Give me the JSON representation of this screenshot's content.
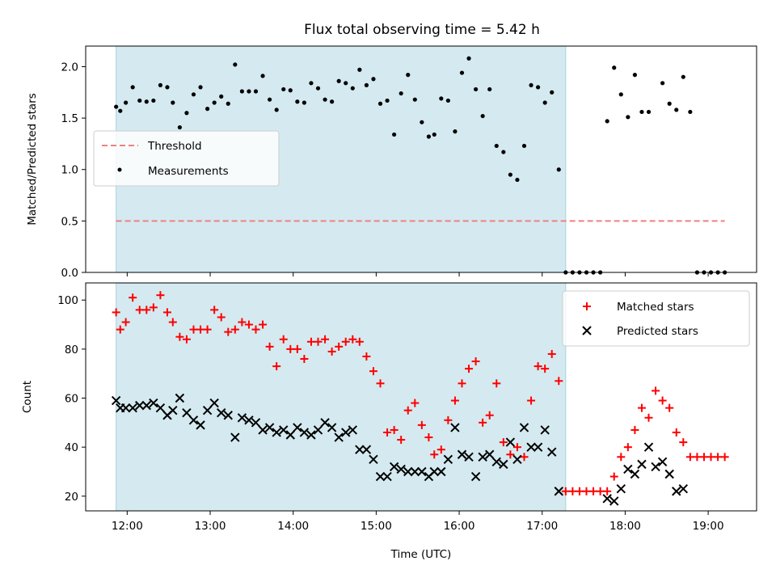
{
  "chart_data": [
    {
      "type": "scatter",
      "title": "Flux total observing time = 5.42 h",
      "ylabel": "Matched/Predicted stars",
      "xlabel": "",
      "xlim": [
        "11:30",
        "19:35"
      ],
      "ylim": [
        0,
        2.2
      ],
      "yticks": [
        "0.0",
        "0.5",
        "1.0",
        "1.5",
        "2.0"
      ],
      "highlight_span": {
        "start": "11:52",
        "end": "17:17",
        "color": "#d4eaf0"
      },
      "legend": {
        "position": "center-left",
        "entries": [
          "Threshold",
          "Measurements"
        ]
      },
      "threshold": {
        "name": "Threshold",
        "value": 0.5,
        "x_start": "11:52",
        "x_end": "19:12",
        "color": "#f08080"
      },
      "series": [
        {
          "name": "Measurements",
          "color": "#000000",
          "points": [
            [
              "11:52",
              1.61
            ],
            [
              "11:55",
              1.57
            ],
            [
              "11:59",
              1.65
            ],
            [
              "12:04",
              1.8
            ],
            [
              "12:09",
              1.67
            ],
            [
              "12:14",
              1.66
            ],
            [
              "12:19",
              1.67
            ],
            [
              "12:24",
              1.82
            ],
            [
              "12:29",
              1.8
            ],
            [
              "12:33",
              1.65
            ],
            [
              "12:38",
              1.41
            ],
            [
              "12:43",
              1.55
            ],
            [
              "12:48",
              1.73
            ],
            [
              "12:53",
              1.8
            ],
            [
              "12:58",
              1.59
            ],
            [
              "13:03",
              1.65
            ],
            [
              "13:08",
              1.71
            ],
            [
              "13:13",
              1.64
            ],
            [
              "13:18",
              2.02
            ],
            [
              "13:23",
              1.76
            ],
            [
              "13:28",
              1.76
            ],
            [
              "13:33",
              1.76
            ],
            [
              "13:38",
              1.91
            ],
            [
              "13:43",
              1.68
            ],
            [
              "13:48",
              1.58
            ],
            [
              "13:53",
              1.78
            ],
            [
              "13:58",
              1.77
            ],
            [
              "14:03",
              1.66
            ],
            [
              "14:08",
              1.65
            ],
            [
              "14:13",
              1.84
            ],
            [
              "14:18",
              1.79
            ],
            [
              "14:23",
              1.68
            ],
            [
              "14:28",
              1.66
            ],
            [
              "14:33",
              1.86
            ],
            [
              "14:38",
              1.84
            ],
            [
              "14:43",
              1.79
            ],
            [
              "14:48",
              1.97
            ],
            [
              "14:53",
              1.82
            ],
            [
              "14:58",
              1.88
            ],
            [
              "15:03",
              1.64
            ],
            [
              "15:08",
              1.67
            ],
            [
              "15:13",
              1.34
            ],
            [
              "15:18",
              1.74
            ],
            [
              "15:23",
              1.92
            ],
            [
              "15:28",
              1.68
            ],
            [
              "15:33",
              1.46
            ],
            [
              "15:38",
              1.32
            ],
            [
              "15:42",
              1.34
            ],
            [
              "15:47",
              1.69
            ],
            [
              "15:52",
              1.67
            ],
            [
              "15:57",
              1.37
            ],
            [
              "16:02",
              1.94
            ],
            [
              "16:07",
              2.08
            ],
            [
              "16:12",
              1.78
            ],
            [
              "16:17",
              1.52
            ],
            [
              "16:22",
              1.78
            ],
            [
              "16:27",
              1.23
            ],
            [
              "16:32",
              1.17
            ],
            [
              "16:37",
              0.95
            ],
            [
              "16:42",
              0.9
            ],
            [
              "16:47",
              1.23
            ],
            [
              "16:52",
              1.82
            ],
            [
              "16:57",
              1.8
            ],
            [
              "17:02",
              1.65
            ],
            [
              "17:07",
              1.75
            ],
            [
              "17:12",
              1.0
            ],
            [
              "17:17",
              0.0
            ],
            [
              "17:22",
              0.0
            ],
            [
              "17:27",
              0.0
            ],
            [
              "17:32",
              0.0
            ],
            [
              "17:37",
              0.0
            ],
            [
              "17:42",
              0.0
            ],
            [
              "17:47",
              1.47
            ],
            [
              "17:52",
              1.99
            ],
            [
              "17:57",
              1.73
            ],
            [
              "18:02",
              1.51
            ],
            [
              "18:07",
              1.92
            ],
            [
              "18:12",
              1.56
            ],
            [
              "18:17",
              1.56
            ],
            [
              "18:27",
              1.84
            ],
            [
              "18:32",
              1.64
            ],
            [
              "18:37",
              1.58
            ],
            [
              "18:42",
              1.9
            ],
            [
              "18:47",
              1.56
            ],
            [
              "18:52",
              0.0
            ],
            [
              "18:57",
              0.0
            ],
            [
              "19:02",
              0.0
            ],
            [
              "19:07",
              0.0
            ],
            [
              "19:12",
              0.0
            ]
          ]
        }
      ]
    },
    {
      "type": "scatter",
      "title": "",
      "xlabel": "Time (UTC)",
      "ylabel": "Count",
      "xlim": [
        "11:30",
        "19:35"
      ],
      "ylim": [
        14,
        107
      ],
      "xticks": [
        "12:00",
        "13:00",
        "14:00",
        "15:00",
        "16:00",
        "17:00",
        "18:00",
        "19:00"
      ],
      "yticks": [
        "20",
        "40",
        "60",
        "80",
        "100"
      ],
      "highlight_span": {
        "start": "11:52",
        "end": "17:17",
        "color": "#d4eaf0"
      },
      "legend": {
        "position": "top-right",
        "entries": [
          "Matched stars",
          "Predicted stars"
        ]
      },
      "series": [
        {
          "name": "Matched stars",
          "color": "#ff0000",
          "marker": "+",
          "points": [
            [
              "11:52",
              95
            ],
            [
              "11:55",
              88
            ],
            [
              "11:59",
              91
            ],
            [
              "12:04",
              101
            ],
            [
              "12:09",
              96
            ],
            [
              "12:14",
              96
            ],
            [
              "12:19",
              97
            ],
            [
              "12:24",
              102
            ],
            [
              "12:29",
              95
            ],
            [
              "12:33",
              91
            ],
            [
              "12:38",
              85
            ],
            [
              "12:43",
              84
            ],
            [
              "12:48",
              88
            ],
            [
              "12:53",
              88
            ],
            [
              "12:58",
              88
            ],
            [
              "13:03",
              96
            ],
            [
              "13:08",
              93
            ],
            [
              "13:13",
              87
            ],
            [
              "13:18",
              88
            ],
            [
              "13:23",
              91
            ],
            [
              "13:28",
              90
            ],
            [
              "13:33",
              88
            ],
            [
              "13:38",
              90
            ],
            [
              "13:43",
              81
            ],
            [
              "13:48",
              73
            ],
            [
              "13:53",
              84
            ],
            [
              "13:58",
              80
            ],
            [
              "14:03",
              80
            ],
            [
              "14:08",
              76
            ],
            [
              "14:13",
              83
            ],
            [
              "14:18",
              83
            ],
            [
              "14:23",
              84
            ],
            [
              "14:28",
              79
            ],
            [
              "14:33",
              81
            ],
            [
              "14:38",
              83
            ],
            [
              "14:43",
              84
            ],
            [
              "14:48",
              83
            ],
            [
              "14:53",
              77
            ],
            [
              "14:58",
              71
            ],
            [
              "15:03",
              66
            ],
            [
              "15:08",
              46
            ],
            [
              "15:13",
              47
            ],
            [
              "15:18",
              43
            ],
            [
              "15:23",
              55
            ],
            [
              "15:28",
              58
            ],
            [
              "15:33",
              49
            ],
            [
              "15:38",
              44
            ],
            [
              "15:42",
              37
            ],
            [
              "15:47",
              39
            ],
            [
              "15:52",
              51
            ],
            [
              "15:57",
              59
            ],
            [
              "16:02",
              66
            ],
            [
              "16:07",
              72
            ],
            [
              "16:12",
              75
            ],
            [
              "16:17",
              50
            ],
            [
              "16:22",
              53
            ],
            [
              "16:27",
              66
            ],
            [
              "16:32",
              42
            ],
            [
              "16:37",
              37
            ],
            [
              "16:42",
              40
            ],
            [
              "16:47",
              36
            ],
            [
              "16:52",
              59
            ],
            [
              "16:57",
              73
            ],
            [
              "17:02",
              72
            ],
            [
              "17:07",
              78
            ],
            [
              "17:12",
              67
            ],
            [
              "17:17",
              22
            ],
            [
              "17:22",
              22
            ],
            [
              "17:27",
              22
            ],
            [
              "17:32",
              22
            ],
            [
              "17:37",
              22
            ],
            [
              "17:42",
              22
            ],
            [
              "17:47",
              22
            ],
            [
              "17:52",
              28
            ],
            [
              "17:57",
              36
            ],
            [
              "18:02",
              40
            ],
            [
              "18:07",
              47
            ],
            [
              "18:12",
              56
            ],
            [
              "18:17",
              52
            ],
            [
              "18:22",
              63
            ],
            [
              "18:27",
              59
            ],
            [
              "18:32",
              56
            ],
            [
              "18:37",
              46
            ],
            [
              "18:42",
              42
            ],
            [
              "18:47",
              36
            ],
            [
              "18:52",
              36
            ],
            [
              "18:57",
              36
            ],
            [
              "19:02",
              36
            ],
            [
              "19:07",
              36
            ],
            [
              "19:12",
              36
            ]
          ]
        },
        {
          "name": "Predicted stars",
          "color": "#000000",
          "marker": "x",
          "points": [
            [
              "11:52",
              59
            ],
            [
              "11:55",
              56
            ],
            [
              "11:59",
              56
            ],
            [
              "12:04",
              56
            ],
            [
              "12:09",
              57
            ],
            [
              "12:14",
              57
            ],
            [
              "12:19",
              58
            ],
            [
              "12:24",
              56
            ],
            [
              "12:29",
              53
            ],
            [
              "12:33",
              55
            ],
            [
              "12:38",
              60
            ],
            [
              "12:43",
              54
            ],
            [
              "12:48",
              51
            ],
            [
              "12:53",
              49
            ],
            [
              "12:58",
              55
            ],
            [
              "13:03",
              58
            ],
            [
              "13:08",
              54
            ],
            [
              "13:13",
              53
            ],
            [
              "13:18",
              44
            ],
            [
              "13:23",
              52
            ],
            [
              "13:28",
              51
            ],
            [
              "13:33",
              50
            ],
            [
              "13:38",
              47
            ],
            [
              "13:43",
              48
            ],
            [
              "13:48",
              46
            ],
            [
              "13:53",
              47
            ],
            [
              "13:58",
              45
            ],
            [
              "14:03",
              48
            ],
            [
              "14:08",
              46
            ],
            [
              "14:13",
              45
            ],
            [
              "14:18",
              47
            ],
            [
              "14:23",
              50
            ],
            [
              "14:28",
              48
            ],
            [
              "14:33",
              44
            ],
            [
              "14:38",
              46
            ],
            [
              "14:43",
              47
            ],
            [
              "14:48",
              39
            ],
            [
              "14:53",
              39
            ],
            [
              "14:58",
              35
            ],
            [
              "15:03",
              28
            ],
            [
              "15:08",
              28
            ],
            [
              "15:13",
              32
            ],
            [
              "15:18",
              31
            ],
            [
              "15:23",
              30
            ],
            [
              "15:28",
              30
            ],
            [
              "15:33",
              30
            ],
            [
              "15:38",
              28
            ],
            [
              "15:42",
              30
            ],
            [
              "15:47",
              30
            ],
            [
              "15:52",
              35
            ],
            [
              "15:57",
              48
            ],
            [
              "16:02",
              37
            ],
            [
              "16:07",
              36
            ],
            [
              "16:12",
              28
            ],
            [
              "16:17",
              36
            ],
            [
              "16:22",
              37
            ],
            [
              "16:27",
              34
            ],
            [
              "16:32",
              33
            ],
            [
              "16:37",
              42
            ],
            [
              "16:42",
              35
            ],
            [
              "16:47",
              48
            ],
            [
              "16:52",
              40
            ],
            [
              "16:57",
              40
            ],
            [
              "17:02",
              47
            ],
            [
              "17:07",
              38
            ],
            [
              "17:12",
              22
            ],
            [
              "17:47",
              19
            ],
            [
              "17:52",
              18
            ],
            [
              "17:57",
              23
            ],
            [
              "18:02",
              31
            ],
            [
              "18:07",
              29
            ],
            [
              "18:12",
              33
            ],
            [
              "18:17",
              40
            ],
            [
              "18:22",
              32
            ],
            [
              "18:27",
              34
            ],
            [
              "18:32",
              29
            ],
            [
              "18:37",
              22
            ],
            [
              "18:42",
              23
            ]
          ]
        }
      ]
    }
  ]
}
